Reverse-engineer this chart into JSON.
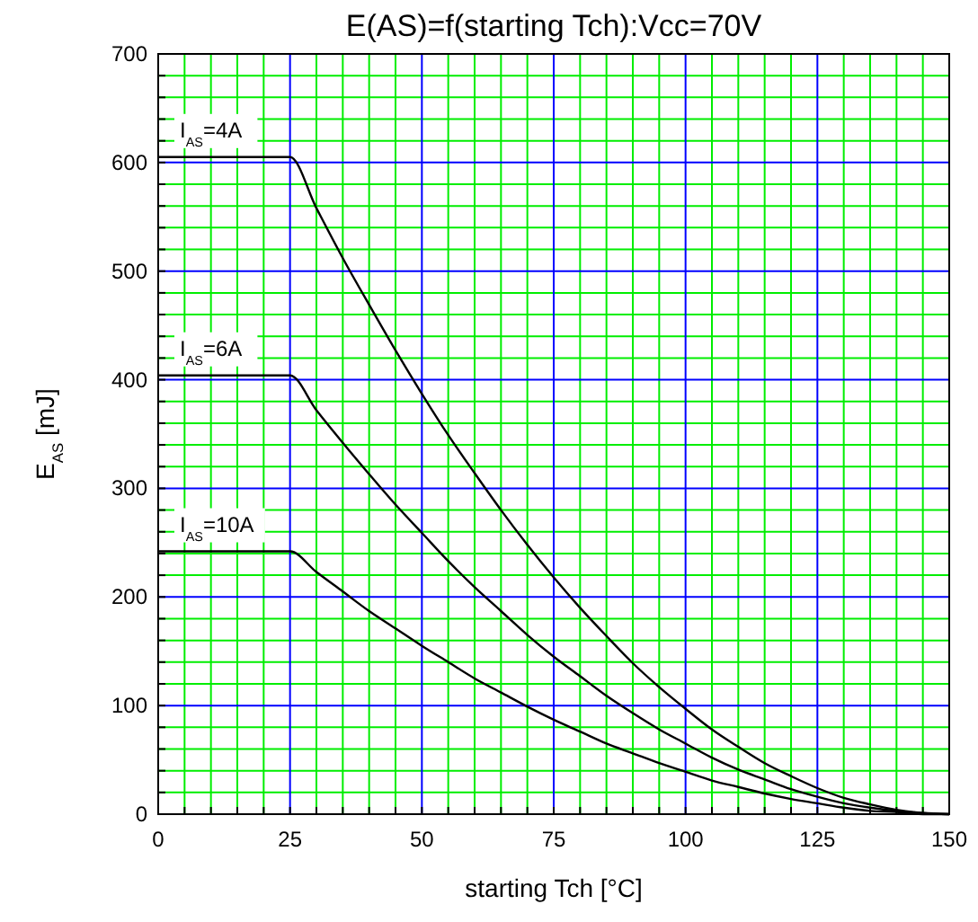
{
  "chart_data": {
    "type": "line",
    "title": "E(AS)=f(starting Tch):Vcc=70V",
    "xlabel": "starting Tch [°C]",
    "ylabel": "E$_{AS}$ [mJ]",
    "x": [
      0,
      25,
      30,
      35,
      40,
      45,
      50,
      55,
      60,
      65,
      70,
      75,
      80,
      85,
      90,
      95,
      100,
      105,
      110,
      115,
      120,
      125,
      130,
      135,
      140,
      145,
      150
    ],
    "series": [
      {
        "name": "I$_{AS}$=4A",
        "color": "#000000",
        "values": [
          605,
          605,
          558,
          512,
          469,
          427,
          387,
          349,
          314,
          280,
          248,
          218,
          190,
          164,
          139,
          117,
          97,
          78,
          62,
          47,
          35,
          24,
          15,
          9,
          4,
          1,
          0
        ]
      },
      {
        "name": "I$_{AS}$=6A",
        "color": "#000000",
        "values": [
          404,
          404,
          372,
          342,
          313,
          285,
          259,
          233,
          209,
          187,
          165,
          145,
          127,
          109,
          93,
          78,
          65,
          52,
          41,
          32,
          23,
          16,
          10,
          6,
          3,
          1,
          0
        ]
      },
      {
        "name": "I$_{AS}$=10A",
        "color": "#000000",
        "values": [
          242,
          242,
          223,
          205,
          187,
          171,
          155,
          140,
          125,
          112,
          99,
          87,
          76,
          65,
          56,
          47,
          39,
          31,
          25,
          19,
          14,
          10,
          6,
          3,
          2,
          0,
          0
        ]
      }
    ],
    "xlim": [
      0,
      150
    ],
    "xticks": [
      0,
      {
        "value": 5,
        "label": null
      },
      {
        "value": 10,
        "label": null
      },
      {
        "value": 15,
        "label": null
      },
      {
        "value": 20,
        "label": null
      },
      25,
      {
        "value": 30,
        "label": null
      },
      {
        "value": 35,
        "label": null
      },
      {
        "value": 40,
        "label": null
      },
      {
        "value": 45,
        "label": null
      },
      50,
      {
        "value": 55,
        "label": null
      },
      {
        "value": 60,
        "label": null
      },
      {
        "value": 65,
        "label": null
      },
      {
        "value": 70,
        "label": null
      },
      75,
      {
        "value": 80,
        "label": null
      },
      {
        "value": 85,
        "label": null
      },
      {
        "value": 90,
        "label": null
      },
      {
        "value": 95,
        "label": null
      },
      100,
      {
        "value": 105,
        "label": null
      },
      {
        "value": 110,
        "label": null
      },
      {
        "value": 115,
        "label": null
      },
      {
        "value": 120,
        "label": null
      },
      125,
      {
        "value": 130,
        "label": null
      },
      {
        "value": 135,
        "label": null
      },
      {
        "value": 140,
        "label": null
      },
      {
        "value": 145,
        "label": null
      },
      150
    ],
    "ylim": [
      0,
      700
    ],
    "yticks": [
      0,
      {
        "value": 20,
        "label": null
      },
      {
        "value": 40,
        "label": null
      },
      {
        "value": 60,
        "label": null
      },
      {
        "value": 80,
        "label": null
      },
      100,
      {
        "value": 120,
        "label": null
      },
      {
        "value": 140,
        "label": null
      },
      {
        "value": 160,
        "label": null
      },
      {
        "value": 180,
        "label": null
      },
      200,
      {
        "value": 220,
        "label": null
      },
      {
        "value": 240,
        "label": null
      },
      {
        "value": 260,
        "label": null
      },
      {
        "value": 280,
        "label": null
      },
      300,
      {
        "value": 320,
        "label": null
      },
      {
        "value": 340,
        "label": null
      },
      {
        "value": 360,
        "label": null
      },
      {
        "value": 380,
        "label": null
      },
      400,
      {
        "value": 420,
        "label": null
      },
      {
        "value": 440,
        "label": null
      },
      {
        "value": 460,
        "label": null
      },
      {
        "value": 480,
        "label": null
      },
      500,
      {
        "value": 520,
        "label": null
      },
      {
        "value": 540,
        "label": null
      },
      {
        "value": 560,
        "label": null
      },
      {
        "value": 580,
        "label": null
      },
      600,
      {
        "value": 620,
        "label": null
      },
      {
        "value": 640,
        "label": null
      },
      {
        "value": 660,
        "label": null
      },
      {
        "value": 680,
        "label": null
      },
      700
    ],
    "grid": true,
    "line_style": "solid",
    "marker": "none"
  }
}
